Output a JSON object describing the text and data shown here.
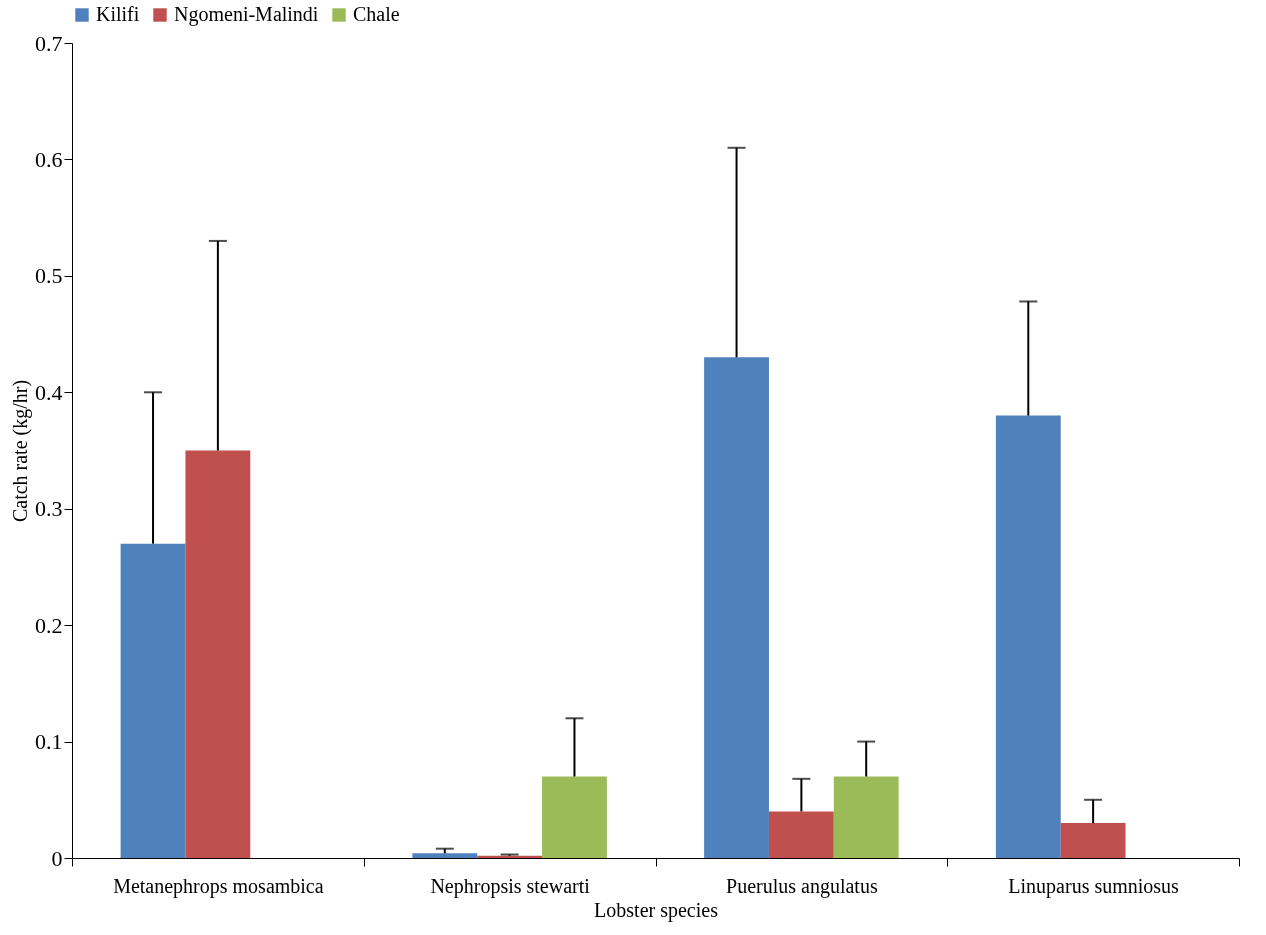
{
  "chart_data": {
    "type": "bar",
    "xlabel": "Lobster species",
    "ylabel": "Catch rate (kg/hr)",
    "categories": [
      "Metanephrops mosambica",
      "Nephropsis stewarti",
      "Puerulus angulatus",
      "Linuparus sumniosus"
    ],
    "series": [
      {
        "name": "Kilifi",
        "color": "#4f81bd",
        "values": [
          0.27,
          0.004,
          0.43,
          0.38
        ],
        "errors": [
          [
            0.27,
            0.4
          ],
          [
            0.004,
            0.008
          ],
          [
            0.43,
            0.61
          ],
          [
            0.38,
            0.478
          ]
        ]
      },
      {
        "name": "Ngomeni-Malindi",
        "color": "#c0504d",
        "values": [
          0.35,
          0.002,
          0.04,
          0.03
        ],
        "errors": [
          [
            0.35,
            0.53
          ],
          [
            0.002,
            0.003
          ],
          [
            0.04,
            0.068
          ],
          [
            0.03,
            0.05
          ]
        ]
      },
      {
        "name": "Chale",
        "color": "#9bbb59",
        "values": [
          null,
          0.07,
          0.07,
          null
        ],
        "errors": [
          null,
          [
            0.07,
            0.12
          ],
          [
            0.07,
            0.1
          ],
          null
        ]
      }
    ],
    "ylim": [
      0,
      0.7
    ],
    "yticks": [
      0,
      0.1,
      0.2,
      0.3,
      0.4,
      0.5,
      0.6,
      0.7
    ],
    "grid": false,
    "legend": "top"
  }
}
